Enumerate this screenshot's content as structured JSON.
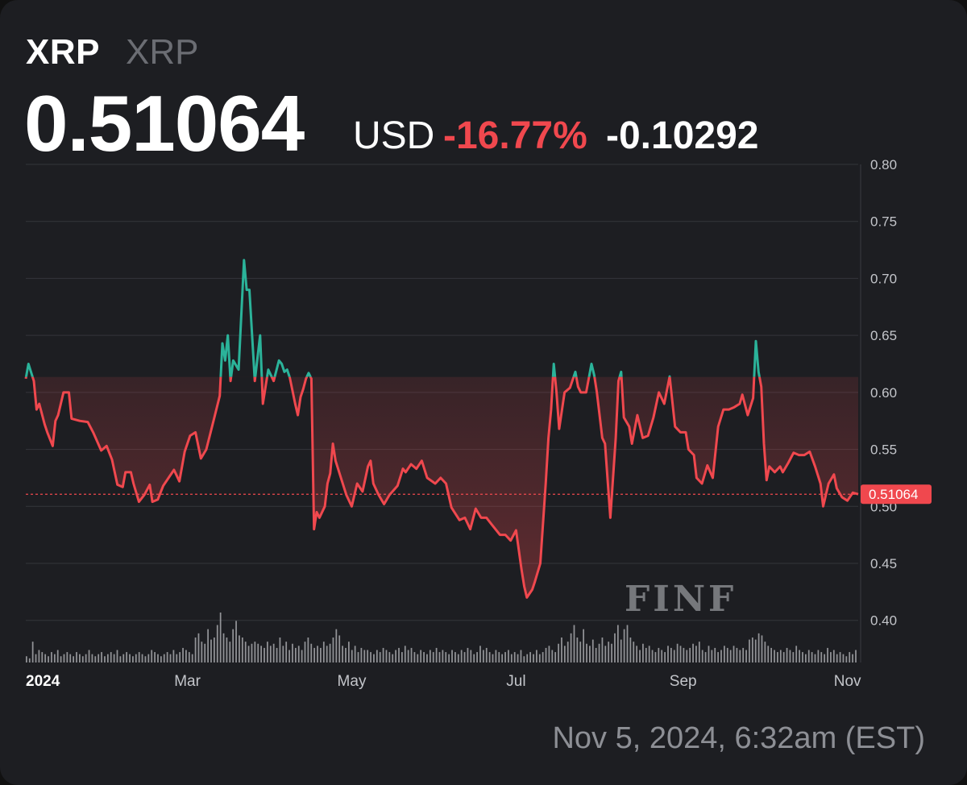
{
  "header": {
    "name": "XRP",
    "sub": "XRP",
    "price": "0.51064",
    "currency": "USD",
    "change_pct": "-16.77%",
    "change_abs": "-0.10292"
  },
  "timestamp": "Nov 5, 2024, 6:32am (EST)",
  "watermark": "FINF",
  "colors": {
    "up": "#2bb39a",
    "down": "#f0484e",
    "background": "#1d1e22",
    "grid": "#34363b"
  },
  "chart_data": {
    "type": "line",
    "series": [
      {
        "values": [
          {
            "x": "2024-01-01",
            "y": 0.612
          },
          {
            "x": "2024-01-02",
            "y": 0.625
          },
          {
            "x": "2024-01-04",
            "y": 0.61
          },
          {
            "x": "2024-01-05",
            "y": 0.585
          },
          {
            "x": "2024-01-06",
            "y": 0.59
          },
          {
            "x": "2024-01-08",
            "y": 0.572
          },
          {
            "x": "2024-01-09",
            "y": 0.565
          },
          {
            "x": "2024-01-11",
            "y": 0.553
          },
          {
            "x": "2024-01-12",
            "y": 0.575
          },
          {
            "x": "2024-01-13",
            "y": 0.58
          },
          {
            "x": "2024-01-15",
            "y": 0.6
          },
          {
            "x": "2024-01-17",
            "y": 0.6
          },
          {
            "x": "2024-01-18",
            "y": 0.577
          },
          {
            "x": "2024-01-21",
            "y": 0.575
          },
          {
            "x": "2024-01-24",
            "y": 0.574
          },
          {
            "x": "2024-01-26",
            "y": 0.565
          },
          {
            "x": "2024-01-29",
            "y": 0.549
          },
          {
            "x": "2024-01-31",
            "y": 0.553
          },
          {
            "x": "2024-02-02",
            "y": 0.541
          },
          {
            "x": "2024-02-04",
            "y": 0.519
          },
          {
            "x": "2024-02-06",
            "y": 0.517
          },
          {
            "x": "2024-02-07",
            "y": 0.53
          },
          {
            "x": "2024-02-09",
            "y": 0.53
          },
          {
            "x": "2024-02-10",
            "y": 0.52
          },
          {
            "x": "2024-02-12",
            "y": 0.504
          },
          {
            "x": "2024-02-14",
            "y": 0.51
          },
          {
            "x": "2024-02-16",
            "y": 0.519
          },
          {
            "x": "2024-02-17",
            "y": 0.504
          },
          {
            "x": "2024-02-19",
            "y": 0.506
          },
          {
            "x": "2024-02-21",
            "y": 0.518
          },
          {
            "x": "2024-02-23",
            "y": 0.525
          },
          {
            "x": "2024-02-25",
            "y": 0.532
          },
          {
            "x": "2024-02-27",
            "y": 0.522
          },
          {
            "x": "2024-02-29",
            "y": 0.548
          },
          {
            "x": "2024-03-02",
            "y": 0.562
          },
          {
            "x": "2024-03-04",
            "y": 0.565
          },
          {
            "x": "2024-03-06",
            "y": 0.542
          },
          {
            "x": "2024-03-08",
            "y": 0.55
          },
          {
            "x": "2024-03-11",
            "y": 0.578
          },
          {
            "x": "2024-03-13",
            "y": 0.597
          },
          {
            "x": "2024-03-14",
            "y": 0.643
          },
          {
            "x": "2024-03-15",
            "y": 0.628
          },
          {
            "x": "2024-03-16",
            "y": 0.65
          },
          {
            "x": "2024-03-17",
            "y": 0.61
          },
          {
            "x": "2024-03-18",
            "y": 0.628
          },
          {
            "x": "2024-03-20",
            "y": 0.62
          },
          {
            "x": "2024-03-22",
            "y": 0.716
          },
          {
            "x": "2024-03-23",
            "y": 0.69
          },
          {
            "x": "2024-03-24",
            "y": 0.69
          },
          {
            "x": "2024-03-26",
            "y": 0.61
          },
          {
            "x": "2024-03-28",
            "y": 0.65
          },
          {
            "x": "2024-03-29",
            "y": 0.59
          },
          {
            "x": "2024-03-31",
            "y": 0.62
          },
          {
            "x": "2024-04-02",
            "y": 0.61
          },
          {
            "x": "2024-04-04",
            "y": 0.628
          },
          {
            "x": "2024-04-05",
            "y": 0.625
          },
          {
            "x": "2024-04-06",
            "y": 0.618
          },
          {
            "x": "2024-04-07",
            "y": 0.62
          },
          {
            "x": "2024-04-08",
            "y": 0.613
          },
          {
            "x": "2024-04-10",
            "y": 0.59
          },
          {
            "x": "2024-04-11",
            "y": 0.58
          },
          {
            "x": "2024-04-12",
            "y": 0.596
          },
          {
            "x": "2024-04-13",
            "y": 0.603
          },
          {
            "x": "2024-04-14",
            "y": 0.612
          },
          {
            "x": "2024-04-15",
            "y": 0.617
          },
          {
            "x": "2024-04-16",
            "y": 0.612
          },
          {
            "x": "2024-04-17",
            "y": 0.48
          },
          {
            "x": "2024-04-18",
            "y": 0.495
          },
          {
            "x": "2024-04-19",
            "y": 0.49
          },
          {
            "x": "2024-04-21",
            "y": 0.5
          },
          {
            "x": "2024-04-22",
            "y": 0.52
          },
          {
            "x": "2024-04-23",
            "y": 0.529
          },
          {
            "x": "2024-04-24",
            "y": 0.555
          },
          {
            "x": "2024-04-25",
            "y": 0.54
          },
          {
            "x": "2024-04-27",
            "y": 0.525
          },
          {
            "x": "2024-04-29",
            "y": 0.51
          },
          {
            "x": "2024-05-01",
            "y": 0.5
          },
          {
            "x": "2024-05-03",
            "y": 0.52
          },
          {
            "x": "2024-05-05",
            "y": 0.513
          },
          {
            "x": "2024-05-07",
            "y": 0.535
          },
          {
            "x": "2024-05-08",
            "y": 0.54
          },
          {
            "x": "2024-05-09",
            "y": 0.52
          },
          {
            "x": "2024-05-11",
            "y": 0.51
          },
          {
            "x": "2024-05-13",
            "y": 0.502
          },
          {
            "x": "2024-05-15",
            "y": 0.51
          },
          {
            "x": "2024-05-18",
            "y": 0.518
          },
          {
            "x": "2024-05-20",
            "y": 0.533
          },
          {
            "x": "2024-05-21",
            "y": 0.53
          },
          {
            "x": "2024-05-23",
            "y": 0.537
          },
          {
            "x": "2024-05-25",
            "y": 0.533
          },
          {
            "x": "2024-05-27",
            "y": 0.54
          },
          {
            "x": "2024-05-29",
            "y": 0.525
          },
          {
            "x": "2024-06-01",
            "y": 0.52
          },
          {
            "x": "2024-06-03",
            "y": 0.525
          },
          {
            "x": "2024-06-05",
            "y": 0.52
          },
          {
            "x": "2024-06-07",
            "y": 0.499
          },
          {
            "x": "2024-06-10",
            "y": 0.488
          },
          {
            "x": "2024-06-12",
            "y": 0.49
          },
          {
            "x": "2024-06-14",
            "y": 0.48
          },
          {
            "x": "2024-06-16",
            "y": 0.498
          },
          {
            "x": "2024-06-18",
            "y": 0.49
          },
          {
            "x": "2024-06-20",
            "y": 0.49
          },
          {
            "x": "2024-06-22",
            "y": 0.484
          },
          {
            "x": "2024-06-25",
            "y": 0.475
          },
          {
            "x": "2024-06-27",
            "y": 0.475
          },
          {
            "x": "2024-06-29",
            "y": 0.47
          },
          {
            "x": "2024-07-01",
            "y": 0.479
          },
          {
            "x": "2024-07-03",
            "y": 0.445
          },
          {
            "x": "2024-07-04",
            "y": 0.43
          },
          {
            "x": "2024-07-05",
            "y": 0.42
          },
          {
            "x": "2024-07-07",
            "y": 0.427
          },
          {
            "x": "2024-07-08",
            "y": 0.434
          },
          {
            "x": "2024-07-10",
            "y": 0.45
          },
          {
            "x": "2024-07-12",
            "y": 0.52
          },
          {
            "x": "2024-07-13",
            "y": 0.56
          },
          {
            "x": "2024-07-14",
            "y": 0.585
          },
          {
            "x": "2024-07-15",
            "y": 0.625
          },
          {
            "x": "2024-07-16",
            "y": 0.6
          },
          {
            "x": "2024-07-17",
            "y": 0.568
          },
          {
            "x": "2024-07-19",
            "y": 0.6
          },
          {
            "x": "2024-07-21",
            "y": 0.604
          },
          {
            "x": "2024-07-23",
            "y": 0.618
          },
          {
            "x": "2024-07-24",
            "y": 0.605
          },
          {
            "x": "2024-07-25",
            "y": 0.6
          },
          {
            "x": "2024-07-27",
            "y": 0.6
          },
          {
            "x": "2024-07-29",
            "y": 0.625
          },
          {
            "x": "2024-07-30",
            "y": 0.615
          },
          {
            "x": "2024-07-31",
            "y": 0.6
          },
          {
            "x": "2024-08-02",
            "y": 0.56
          },
          {
            "x": "2024-08-03",
            "y": 0.555
          },
          {
            "x": "2024-08-05",
            "y": 0.49
          },
          {
            "x": "2024-08-07",
            "y": 0.56
          },
          {
            "x": "2024-08-08",
            "y": 0.61
          },
          {
            "x": "2024-08-09",
            "y": 0.618
          },
          {
            "x": "2024-08-10",
            "y": 0.578
          },
          {
            "x": "2024-08-12",
            "y": 0.57
          },
          {
            "x": "2024-08-13",
            "y": 0.555
          },
          {
            "x": "2024-08-15",
            "y": 0.58
          },
          {
            "x": "2024-08-17",
            "y": 0.56
          },
          {
            "x": "2024-08-19",
            "y": 0.562
          },
          {
            "x": "2024-08-21",
            "y": 0.578
          },
          {
            "x": "2024-08-23",
            "y": 0.6
          },
          {
            "x": "2024-08-25",
            "y": 0.59
          },
          {
            "x": "2024-08-27",
            "y": 0.614
          },
          {
            "x": "2024-08-29",
            "y": 0.57
          },
          {
            "x": "2024-08-31",
            "y": 0.565
          },
          {
            "x": "2024-09-02",
            "y": 0.565
          },
          {
            "x": "2024-09-03",
            "y": 0.55
          },
          {
            "x": "2024-09-05",
            "y": 0.545
          },
          {
            "x": "2024-09-06",
            "y": 0.525
          },
          {
            "x": "2024-09-08",
            "y": 0.52
          },
          {
            "x": "2024-09-10",
            "y": 0.536
          },
          {
            "x": "2024-09-12",
            "y": 0.525
          },
          {
            "x": "2024-09-14",
            "y": 0.57
          },
          {
            "x": "2024-09-16",
            "y": 0.585
          },
          {
            "x": "2024-09-18",
            "y": 0.585
          },
          {
            "x": "2024-09-20",
            "y": 0.587
          },
          {
            "x": "2024-09-22",
            "y": 0.59
          },
          {
            "x": "2024-09-23",
            "y": 0.598
          },
          {
            "x": "2024-09-25",
            "y": 0.58
          },
          {
            "x": "2024-09-27",
            "y": 0.595
          },
          {
            "x": "2024-09-28",
            "y": 0.645
          },
          {
            "x": "2024-09-29",
            "y": 0.618
          },
          {
            "x": "2024-09-30",
            "y": 0.605
          },
          {
            "x": "2024-10-01",
            "y": 0.555
          },
          {
            "x": "2024-10-02",
            "y": 0.523
          },
          {
            "x": "2024-10-03",
            "y": 0.535
          },
          {
            "x": "2024-10-05",
            "y": 0.53
          },
          {
            "x": "2024-10-07",
            "y": 0.535
          },
          {
            "x": "2024-10-08",
            "y": 0.53
          },
          {
            "x": "2024-10-10",
            "y": 0.538
          },
          {
            "x": "2024-10-12",
            "y": 0.547
          },
          {
            "x": "2024-10-14",
            "y": 0.545
          },
          {
            "x": "2024-10-16",
            "y": 0.545
          },
          {
            "x": "2024-10-18",
            "y": 0.548
          },
          {
            "x": "2024-10-20",
            "y": 0.535
          },
          {
            "x": "2024-10-22",
            "y": 0.52
          },
          {
            "x": "2024-10-23",
            "y": 0.5
          },
          {
            "x": "2024-10-25",
            "y": 0.52
          },
          {
            "x": "2024-10-27",
            "y": 0.528
          },
          {
            "x": "2024-10-28",
            "y": 0.516
          },
          {
            "x": "2024-10-30",
            "y": 0.508
          },
          {
            "x": "2024-11-01",
            "y": 0.505
          },
          {
            "x": "2024-11-03",
            "y": 0.512
          },
          {
            "x": "2024-11-05",
            "y": 0.51064
          }
        ]
      }
    ],
    "y_ticks": [
      "0.80",
      "0.75",
      "0.70",
      "0.65",
      "0.60",
      "0.55",
      "0.50",
      "0.45",
      "0.40"
    ],
    "ylim": [
      0.38,
      0.8
    ],
    "x_ticks": [
      {
        "label": "2024",
        "date": "2024-01-01",
        "bold": true
      },
      {
        "label": "Mar",
        "date": "2024-03-01",
        "bold": false
      },
      {
        "label": "May",
        "date": "2024-05-01",
        "bold": false
      },
      {
        "label": "Jul",
        "date": "2024-07-01",
        "bold": false
      },
      {
        "label": "Sep",
        "date": "2024-09-01",
        "bold": false
      },
      {
        "label": "Nov",
        "date": "2024-11-01",
        "bold": false
      }
    ],
    "xlim": [
      "2024-01-01",
      "2024-11-05"
    ],
    "baseline": 0.6136,
    "current_price_label": "0.51064",
    "current_price": 0.51064,
    "grid": true,
    "volume": [
      3,
      2,
      10,
      4,
      6,
      5,
      4,
      3,
      5,
      4,
      6,
      3,
      4,
      5,
      4,
      3,
      5,
      4,
      3,
      4,
      6,
      4,
      3,
      4,
      5,
      3,
      4,
      5,
      4,
      6,
      3,
      4,
      5,
      4,
      3,
      4,
      5,
      4,
      3,
      4,
      6,
      5,
      4,
      3,
      4,
      5,
      4,
      6,
      4,
      5,
      7,
      6,
      5,
      4,
      12,
      14,
      10,
      9,
      16,
      11,
      12,
      18,
      24,
      14,
      12,
      10,
      16,
      20,
      13,
      12,
      10,
      8,
      9,
      10,
      9,
      8,
      7,
      10,
      8,
      9,
      7,
      12,
      8,
      10,
      6,
      9,
      7,
      8,
      6,
      10,
      12,
      9,
      7,
      8,
      7,
      10,
      8,
      9,
      12,
      16,
      13,
      8,
      7,
      10,
      6,
      8,
      5,
      7,
      6,
      6,
      5,
      4,
      6,
      5,
      7,
      6,
      5,
      4,
      6,
      7,
      5,
      8,
      6,
      7,
      5,
      4,
      6,
      5,
      4,
      6,
      5,
      7,
      5,
      6,
      5,
      4,
      6,
      5,
      4,
      6,
      5,
      7,
      6,
      4,
      5,
      8,
      6,
      7,
      5,
      4,
      6,
      5,
      4,
      5,
      6,
      4,
      5,
      4,
      6,
      3,
      4,
      5,
      4,
      6,
      4,
      5,
      7,
      8,
      6,
      5,
      9,
      12,
      8,
      10,
      14,
      18,
      12,
      10,
      16,
      9,
      8,
      11,
      7,
      9,
      12,
      8,
      10,
      9,
      14,
      18,
      11,
      16,
      18,
      12,
      10,
      8,
      6,
      9,
      7,
      8,
      6,
      5,
      7,
      6,
      5,
      8,
      7,
      6,
      9,
      8,
      7,
      6,
      7,
      9,
      8,
      10,
      6,
      5,
      8,
      6,
      7,
      5,
      6,
      8,
      7,
      6,
      8,
      7,
      6,
      7,
      6,
      11,
      12,
      11,
      14,
      13,
      10,
      8,
      7,
      6,
      5,
      6,
      5,
      7,
      6,
      5,
      8,
      6,
      5,
      4,
      6,
      5,
      4,
      6,
      5,
      4,
      7,
      5,
      6,
      4,
      5,
      4,
      3,
      5,
      4,
      6
    ]
  }
}
